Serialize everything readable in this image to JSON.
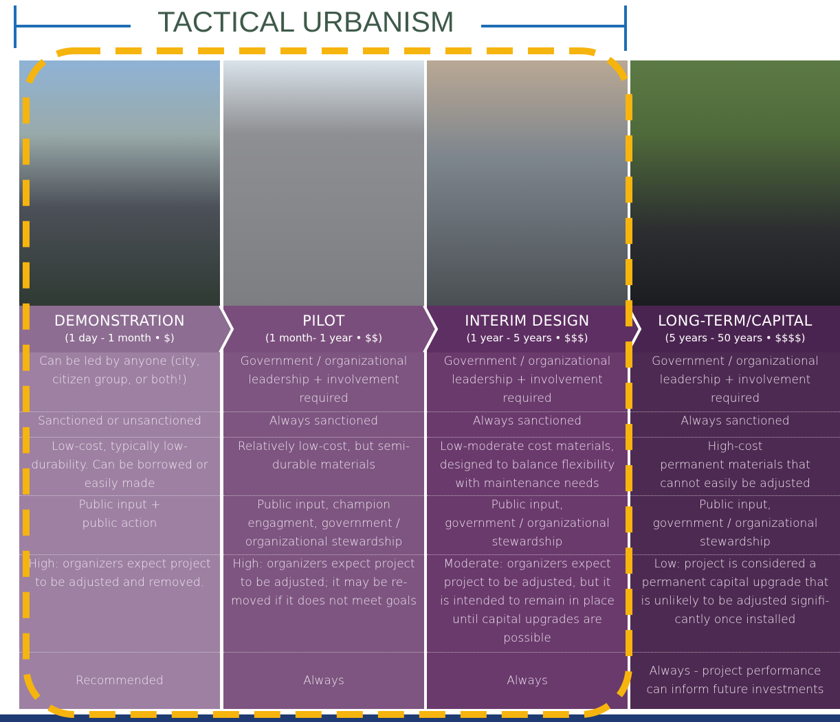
{
  "title": "TACTICAL URBANISM",
  "columns": [
    {
      "heading": "DEMONSTRATION",
      "subheading": "(1 day - 1 month • $)",
      "rows": [
        [
          "Can be led by anyone (city,",
          "citizen group, or both!)"
        ],
        [
          "Sanctioned or unsanctioned"
        ],
        [
          "Low-cost, typically low-",
          "durability. Can be borrowed or",
          "easily made"
        ],
        [
          "Public input +",
          "public action"
        ],
        [
          "High: organizers expect project",
          "to be adjusted and removed."
        ],
        [
          "Recommended"
        ]
      ]
    },
    {
      "heading": "PILOT",
      "subheading": "(1 month- 1 year • $$)",
      "rows": [
        [
          "Government / organizational",
          "leadership  + involvement",
          "required"
        ],
        [
          "Always sanctioned"
        ],
        [
          "Relatively low-cost, but semi-",
          "durable materials"
        ],
        [
          "Public input, champion",
          "engagment, government /",
          "organizational stewardship"
        ],
        [
          "High: organizers expect project",
          "to be adjusted; it may be re-",
          "moved if it does not meet goals"
        ],
        [
          "Always"
        ]
      ]
    },
    {
      "heading": "INTERIM DESIGN",
      "subheading": "(1 year - 5 years • $$$)",
      "rows": [
        [
          "Government / organizational",
          "leadership  + involvement",
          "required"
        ],
        [
          "Always sanctioned"
        ],
        [
          "Low-moderate cost materials,",
          "designed to balance flexibility",
          "with maintenance needs"
        ],
        [
          "Public input,",
          "government / organizational",
          "stewardship"
        ],
        [
          "Moderate: organizers expect",
          "project to be adjusted, but it",
          "is intended to remain in place",
          "until capital upgrades are",
          "possible"
        ],
        [
          "Always"
        ]
      ]
    },
    {
      "heading": "LONG-TERM/CAPITAL",
      "subheading": "(5 years - 50 years • $$$$)",
      "rows": [
        [
          "Government / organizational",
          "leadership  + involvement",
          "required"
        ],
        [
          "Always sanctioned"
        ],
        [
          "High-cost",
          "permanent materials that",
          "cannot easily be adjusted"
        ],
        [
          "Public input,",
          "government / organizational",
          "stewardship"
        ],
        [
          "Low: project is considered a",
          "permanent capital upgrade that",
          "is unlikely to be adjusted signifi-",
          "cantly once installed"
        ],
        [
          "Always - project performance",
          "can inform future investments"
        ]
      ]
    }
  ]
}
